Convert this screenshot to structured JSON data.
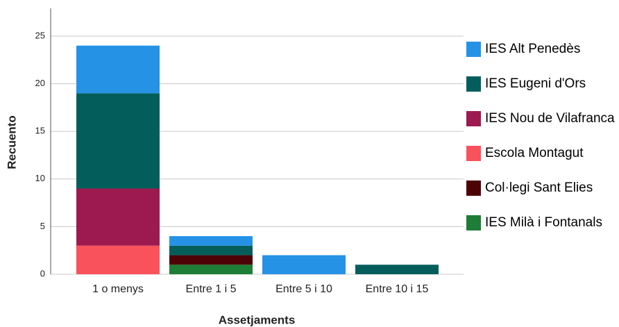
{
  "chart_data": {
    "type": "stacked_bar",
    "x_label": "Assetjaments",
    "y_label": "Recuento",
    "categories": [
      "1 o menys",
      "Entre 1 i 5",
      "Entre 5 i 10",
      "Entre 10 i 15"
    ],
    "series": [
      {
        "name": "IES Alt Penedès",
        "color": "#2592e6",
        "values": [
          5,
          1,
          2,
          0
        ]
      },
      {
        "name": "IES Eugeni d'Ors",
        "color": "#035e5b",
        "values": [
          10,
          1,
          0,
          1
        ]
      },
      {
        "name": "IES Nou de Vilafranca",
        "color": "#9c1a4f",
        "values": [
          6,
          0,
          0,
          0
        ]
      },
      {
        "name": "Escola Montagut",
        "color": "#f9525c",
        "values": [
          3,
          0,
          0,
          0
        ]
      },
      {
        "name": "Col·legi Sant Elies",
        "color": "#4d0305",
        "values": [
          0,
          1,
          0,
          0
        ]
      },
      {
        "name": "IES Milà i Fontanals",
        "color": "#1e7d36",
        "values": [
          0,
          1,
          0,
          0
        ]
      }
    ],
    "ylim": [
      0,
      25
    ],
    "yticks": [
      0,
      5,
      10,
      15,
      20,
      25
    ],
    "grid": true,
    "legend": "right"
  }
}
